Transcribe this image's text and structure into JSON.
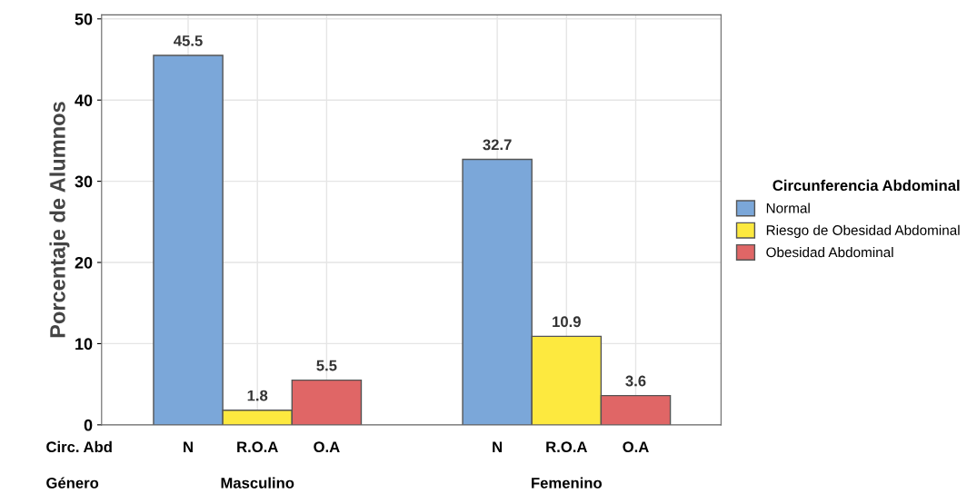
{
  "chart_data": {
    "type": "bar",
    "ylabel": "Porcentaje de Alumnos",
    "legend_title": "Circunferencia Abdominal",
    "categories": [
      "Masculino",
      "Femenino"
    ],
    "series": [
      {
        "name": "Normal",
        "color": "#7ba7d9",
        "values": [
          45.5,
          32.7
        ]
      },
      {
        "name": "Riesgo de Obesidad Abdominal",
        "color": "#fde93f",
        "values": [
          1.8,
          10.9
        ]
      },
      {
        "name": "Obesidad Abdominal",
        "color": "#e06666",
        "values": [
          5.5,
          3.6
        ]
      }
    ],
    "annotations": [
      "Circ. Abd",
      "Género",
      "N",
      "R.O.A",
      "O.A",
      "N",
      "R.O.A",
      "O.A"
    ],
    "ylim": [
      0,
      50.5
    ],
    "yticks": [
      0,
      10,
      20,
      30,
      40,
      50
    ],
    "data_labels": true,
    "grid": true,
    "legend": "right"
  }
}
